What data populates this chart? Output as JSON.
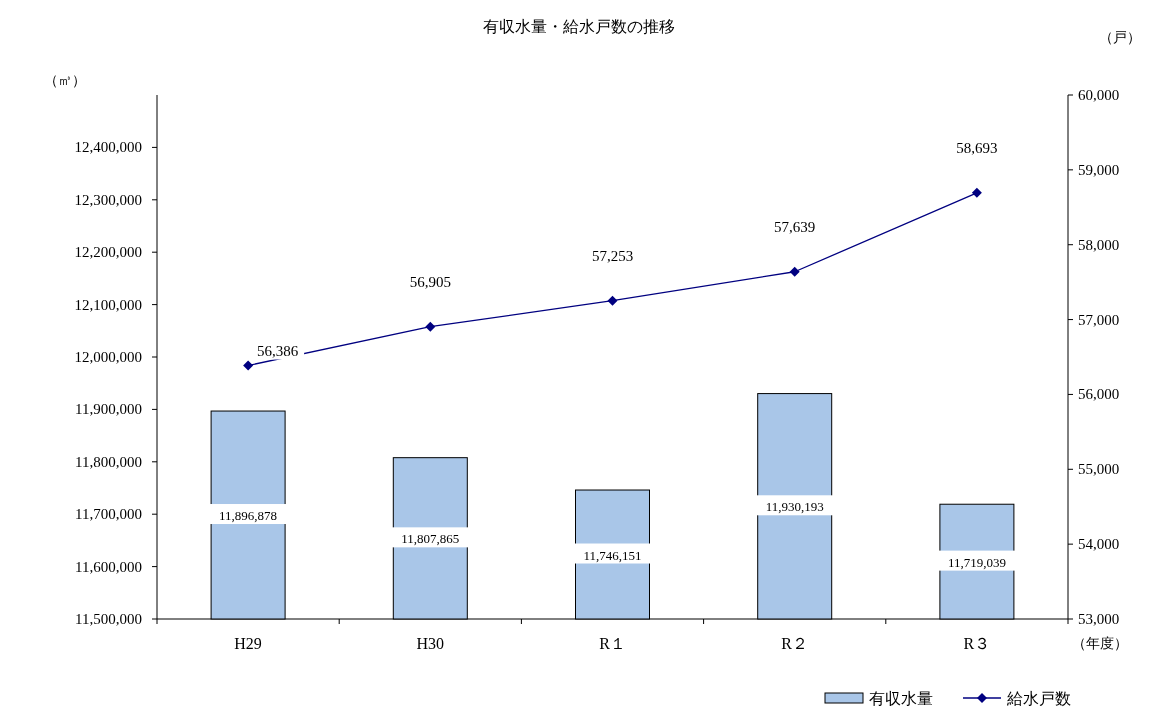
{
  "chart_data": {
    "type": "bar",
    "title": "有収水量・給水戸数の推移",
    "ylabel": "（㎥）",
    "y2label": "（戸）",
    "xlabel": "（年度）",
    "categories": [
      "H29",
      "H30",
      "R１",
      "R２",
      "R３"
    ],
    "series": [
      {
        "name": "有収水量",
        "color": "#a9c6e8",
        "values": [
          11896878,
          11807865,
          11746151,
          11930193,
          11719039
        ],
        "value_labels": [
          "11,896,878",
          "11,807,865",
          "11,746,151",
          "11,930,193",
          "11,719,039"
        ]
      },
      {
        "name": "給水戸数",
        "type": "line",
        "axis": "y2",
        "color": "#000080",
        "values": [
          56386,
          56905,
          57253,
          57639,
          58693
        ],
        "value_labels": [
          "56,386",
          "56,905",
          "57,253",
          "57,639",
          "58,693"
        ]
      }
    ],
    "ylim": [
      11500000,
      12500000
    ],
    "yticks": [
      {
        "value": 11500000,
        "label": "11,500,000"
      },
      {
        "value": 11600000,
        "label": "11,600,000"
      },
      {
        "value": 11700000,
        "label": "11,700,000"
      },
      {
        "value": 11800000,
        "label": "11,800,000"
      },
      {
        "value": 11900000,
        "label": "11,900,000"
      },
      {
        "value": 12000000,
        "label": "12,000,000"
      },
      {
        "value": 12100000,
        "label": "12,100,000"
      },
      {
        "value": 12200000,
        "label": "12,200,000"
      },
      {
        "value": 12300000,
        "label": "12,300,000"
      },
      {
        "value": 12400000,
        "label": "12,400,000"
      }
    ],
    "y2lim": [
      53000,
      60000
    ],
    "y2ticks": [
      {
        "value": 53000,
        "label": "53,000"
      },
      {
        "value": 54000,
        "label": "54,000"
      },
      {
        "value": 55000,
        "label": "55,000"
      },
      {
        "value": 56000,
        "label": "56,000"
      },
      {
        "value": 57000,
        "label": "57,000"
      },
      {
        "value": 58000,
        "label": "58,000"
      },
      {
        "value": 59000,
        "label": "59,000"
      },
      {
        "value": 60000,
        "label": "60,000"
      }
    ],
    "marker": "diamond",
    "legend": "bottom right",
    "grid": false
  }
}
